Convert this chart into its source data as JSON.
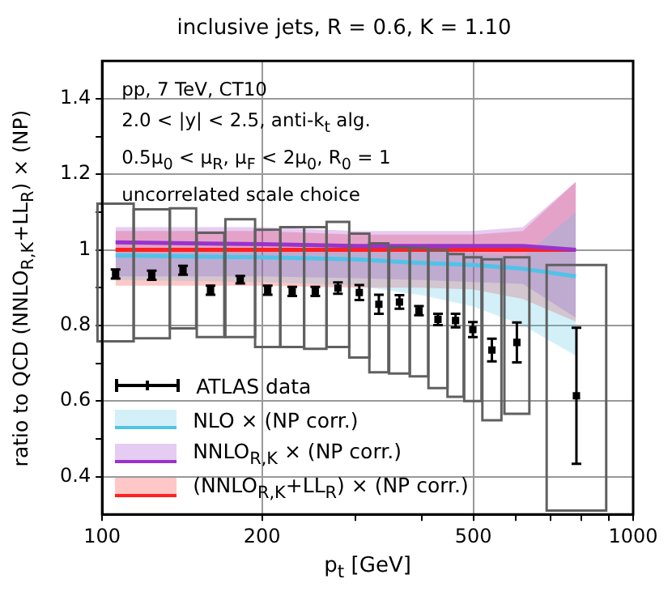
{
  "chart_data": {
    "type": "line",
    "title": "inclusive jets, R = 0.6, K = 1.10",
    "xlabel": "p$_{t}$ [GeV]",
    "ylabel": "ratio to QCD (NNLO$_{R,K}$+LL$_{R}$) × (NP)",
    "annotations": [
      "pp, 7 TeV, CT10",
      "2.0 < |y| < 2.5, anti-k$_{t}$ alg.",
      "0.5μ$_{0}$ < μ$_{R}$, μ$_{F}$ < 2μ$_{0}$, R$_{0}$ = 1",
      "uncorrelated scale choice"
    ],
    "log": "x",
    "xlim": [
      100,
      1000
    ],
    "xticks": [
      100,
      200,
      {
        "value": 300,
        "label": null
      },
      {
        "value": 400,
        "label": null
      },
      500,
      {
        "value": 600,
        "label": null
      },
      {
        "value": 700,
        "label": null
      },
      {
        "value": 800,
        "label": null
      },
      {
        "value": 900,
        "label": null
      },
      1000
    ],
    "ylim": [
      0.3,
      1.5
    ],
    "yticks": [
      0.4,
      {
        "value": 0.5,
        "label": null
      },
      0.6,
      {
        "value": 0.7,
        "label": null
      },
      0.8,
      {
        "value": 0.9,
        "label": null
      },
      1,
      {
        "value": 1.1,
        "label": null
      },
      1.2,
      {
        "value": 1.3,
        "label": null
      },
      1.4
    ],
    "grid": true,
    "legend": "bottom left",
    "series": [
      {
        "type": "bar",
        "color": "#606060",
        "x": [
          106,
          124,
          142,
          160,
          182,
          205,
          228,
          252,
          278,
          305,
          332,
          363,
          395,
          429,
          463,
          499,
          542,
          604,
          782
        ],
        "base": [
          0.758,
          0.766,
          0.792,
          0.769,
          0.769,
          0.743,
          0.743,
          0.738,
          0.743,
          0.715,
          0.676,
          0.673,
          0.665,
          0.634,
          0.611,
          0.6,
          0.549,
          0.566,
          0.31
        ],
        "values": [
          0.364,
          0.341,
          0.318,
          0.276,
          0.312,
          0.31,
          0.317,
          0.322,
          0.331,
          0.328,
          0.341,
          0.333,
          0.34,
          0.366,
          0.378,
          0.38,
          0.426,
          0.414,
          0.65
        ]
      },
      {
        "type": "line",
        "name": "NLO × (NP corr.)",
        "color": "#4fc3e8",
        "x": [
          106,
          200,
          300,
          400,
          500,
          620,
          780
        ],
        "values": [
          0.985,
          0.98,
          0.975,
          0.965,
          0.96,
          0.95,
          0.93
        ],
        "lower": [
          0.92,
          0.915,
          0.905,
          0.88,
          0.85,
          0.8,
          0.72
        ],
        "upper": [
          1.0,
          1.0,
          1.0,
          1.0,
          0.99,
          0.98,
          1.1
        ]
      },
      {
        "type": "line",
        "name": "NNLO$_{R,K}$ × (NP corr.)",
        "color": "#9933cc",
        "x": [
          106,
          200,
          300,
          400,
          500,
          620,
          780
        ],
        "values": [
          1.02,
          1.015,
          1.01,
          1.01,
          1.01,
          1.01,
          1.0
        ],
        "lower": [
          0.93,
          0.93,
          0.925,
          0.92,
          0.915,
          0.91,
          0.82
        ],
        "upper": [
          1.06,
          1.06,
          1.05,
          1.05,
          1.05,
          1.06,
          1.18
        ]
      },
      {
        "type": "line",
        "name": "(NNLO$_{R,K}$+LL$_{R}$) × (NP corr.)",
        "color": "#ff2020",
        "x": [
          106,
          200,
          300,
          400,
          500,
          620,
          780
        ],
        "values": [
          1.0,
          1.0,
          1.0,
          1.0,
          1.0,
          1.0,
          1.0
        ],
        "lower": [
          0.905,
          0.905,
          0.9,
          0.9,
          0.895,
          0.87,
          0.81
        ],
        "upper": [
          1.05,
          1.05,
          1.04,
          1.04,
          1.04,
          1.05,
          1.18
        ]
      },
      {
        "type": "scatter",
        "name": "ATLAS data",
        "color": "#000000",
        "marker": "square",
        "x": [
          106,
          124,
          142,
          160,
          182,
          205,
          228,
          252,
          278,
          305,
          332,
          363,
          395,
          429,
          463,
          499,
          542,
          604,
          782
        ],
        "values": [
          0.936,
          0.933,
          0.946,
          0.893,
          0.921,
          0.893,
          0.89,
          0.89,
          0.899,
          0.887,
          0.856,
          0.862,
          0.839,
          0.816,
          0.813,
          0.789,
          0.735,
          0.755,
          0.614
        ],
        "errors": [
          0.012,
          0.012,
          0.012,
          0.012,
          0.01,
          0.012,
          0.012,
          0.012,
          0.015,
          0.02,
          0.025,
          0.018,
          0.012,
          0.015,
          0.018,
          0.02,
          0.03,
          0.053,
          0.18
        ]
      }
    ]
  }
}
